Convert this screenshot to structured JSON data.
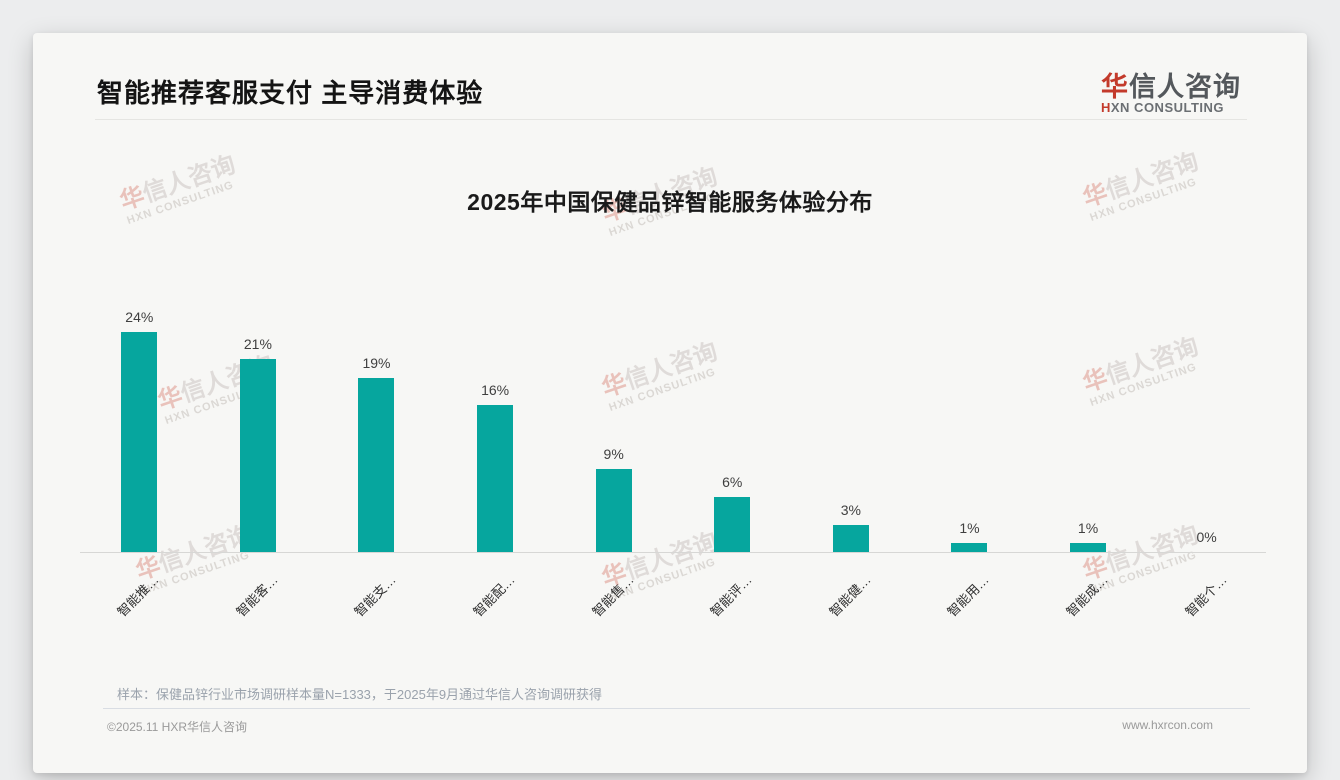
{
  "page": {
    "header": {
      "title": "智能推荐客服支付 主导消费体验"
    },
    "logo": {
      "cn_accent": "华",
      "cn_rest": "信人咨询",
      "en_accent": "H",
      "en_rest": "XN CONSULTING"
    },
    "watermark": {
      "line1_accent": "华",
      "line1_rest": "信人咨询",
      "line2": "HXN CONSULTING"
    },
    "footnote": "样本：保健品锌行业市场调研样本量N=1333，于2025年9月通过华信人咨询调研获得",
    "footer": {
      "left": "©2025.11 HXR华信人咨询",
      "right": "www.hxrcon.com"
    }
  },
  "chart_data": {
    "type": "bar",
    "title": "2025年中国保健品锌智能服务体验分布",
    "categories": [
      "智能推…",
      "智能客…",
      "智能支…",
      "智能配…",
      "智能售…",
      "智能评…",
      "智能健…",
      "智能用…",
      "智能成…",
      "智能个…"
    ],
    "values": [
      24,
      21,
      19,
      16,
      9,
      6,
      3,
      1,
      1,
      0
    ],
    "value_labels": [
      "24%",
      "21%",
      "19%",
      "16%",
      "9%",
      "6%",
      "3%",
      "1%",
      "1%",
      "0%"
    ],
    "xlabel": "",
    "ylabel": "",
    "ylim": [
      0,
      27
    ],
    "grid": false,
    "legend": false,
    "x_label_rotation_deg": 45,
    "bar_color": "#06a69e",
    "axis_line_color": "#d7d7d5"
  }
}
